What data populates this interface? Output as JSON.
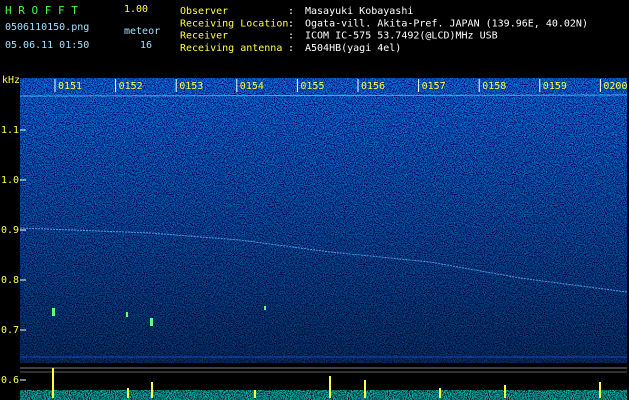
{
  "header": {
    "app": "H R O F F T",
    "version": "1.00",
    "filename": "0506110150.png",
    "meteor_label": "meteor",
    "timestamp": "05.06.11 01:50",
    "meteor_count": "16"
  },
  "station": {
    "separator": ":",
    "rows": [
      {
        "label": "Observer",
        "value": "Masayuki Kobayashi"
      },
      {
        "label": "Receiving Location",
        "value": "Ogata-vill. Akita-Pref. JAPAN (139.96E, 40.02N)"
      },
      {
        "label": "Receiver",
        "value": "ICOM IC-575 53.7492(@LCD)MHz USB"
      },
      {
        "label": "Receiving antenna",
        "value": "A504HB(yagi 4el)"
      }
    ]
  },
  "spectrogram": {
    "freq_unit": "kHz",
    "freq_labels": [
      "1.1",
      "1.0",
      "0.9",
      "0.8",
      "0.7",
      "0.6"
    ],
    "time_labels": [
      "0151",
      "0152",
      "0153",
      "0154",
      "0155",
      "0156",
      "0157",
      "0158",
      "0159",
      "0200"
    ]
  }
}
